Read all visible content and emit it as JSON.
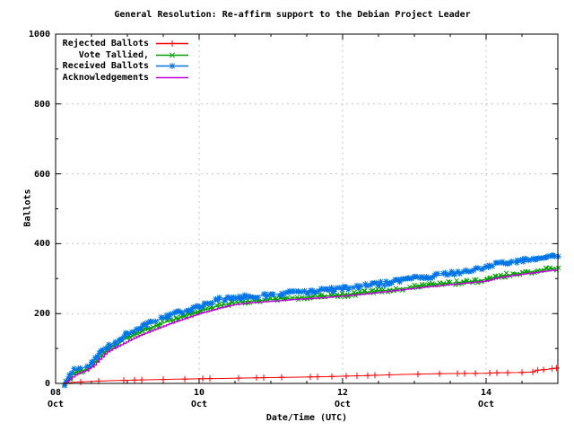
{
  "chart_data": {
    "type": "line",
    "title": "General Resolution: Re-affirm support to the Debian Project Leader",
    "xlabel": "Date/Time (UTC)",
    "ylabel": "Ballots",
    "ylim": [
      0,
      1000
    ],
    "xlim_days": [
      0,
      7
    ],
    "grid": true,
    "legend_position": "top-left",
    "grid_color": "#c5c5c5",
    "frame_color": "#000000",
    "yticks": [
      0,
      200,
      400,
      600,
      800,
      1000
    ],
    "y_minor_step": 100,
    "x_minor_step_days": 0.5,
    "x_major_step_days": 2,
    "xticks": [
      {
        "pos": 0,
        "line1": "08",
        "line2": "Oct"
      },
      {
        "pos": 2,
        "line1": "10",
        "line2": "Oct"
      },
      {
        "pos": 4,
        "line1": "12",
        "line2": "Oct"
      },
      {
        "pos": 6,
        "line1": "14",
        "line2": "Oct"
      }
    ],
    "series": [
      {
        "name": "Rejected Ballots",
        "color": "#ff0000",
        "marker": "plus",
        "band": false,
        "steps": false,
        "points": [
          [
            0.12,
            0
          ],
          [
            0.25,
            3
          ],
          [
            0.5,
            6
          ],
          [
            0.8,
            8
          ],
          [
            1.2,
            10
          ],
          [
            1.7,
            12
          ],
          [
            2.2,
            14
          ],
          [
            2.8,
            16
          ],
          [
            3.4,
            18
          ],
          [
            3.9,
            20
          ],
          [
            4.4,
            23
          ],
          [
            4.9,
            26
          ],
          [
            5.4,
            28
          ],
          [
            5.95,
            29
          ],
          [
            6.1,
            30
          ],
          [
            6.45,
            31
          ],
          [
            6.65,
            33
          ],
          [
            6.72,
            38
          ],
          [
            6.85,
            40
          ],
          [
            6.95,
            43
          ],
          [
            7.0,
            44
          ]
        ],
        "marker_days": [
          0.15,
          0.35,
          0.6,
          0.95,
          1.1,
          1.2,
          1.5,
          1.8,
          2.05,
          2.15,
          2.55,
          2.8,
          2.9,
          3.15,
          3.55,
          3.65,
          3.85,
          4.05,
          4.2,
          4.35,
          4.45,
          4.65,
          5.05,
          5.35,
          5.6,
          5.7,
          5.85,
          6.05,
          6.15,
          6.3,
          6.5,
          6.65,
          6.72,
          6.8,
          6.92,
          6.98
        ]
      },
      {
        "name": "Vote Tallied,",
        "color": "#00a000",
        "marker": "cross",
        "band": true,
        "steps": false,
        "points": [
          [
            0.12,
            0
          ],
          [
            0.18,
            12
          ],
          [
            0.25,
            26
          ],
          [
            0.33,
            35
          ],
          [
            0.42,
            40
          ],
          [
            0.5,
            50
          ],
          [
            0.57,
            64
          ],
          [
            0.63,
            80
          ],
          [
            0.7,
            93
          ],
          [
            0.78,
            104
          ],
          [
            0.88,
            115
          ],
          [
            0.98,
            128
          ],
          [
            1.1,
            140
          ],
          [
            1.25,
            153
          ],
          [
            1.42,
            167
          ],
          [
            1.6,
            180
          ],
          [
            1.78,
            192
          ],
          [
            1.95,
            203
          ],
          [
            2.1,
            212
          ],
          [
            2.28,
            222
          ],
          [
            2.45,
            230
          ],
          [
            2.65,
            235
          ],
          [
            2.9,
            238
          ],
          [
            3.2,
            243
          ],
          [
            3.55,
            248
          ],
          [
            3.9,
            252
          ],
          [
            4.1,
            255
          ],
          [
            4.4,
            262
          ],
          [
            4.7,
            269
          ],
          [
            5.0,
            276
          ],
          [
            5.3,
            283
          ],
          [
            5.6,
            289
          ],
          [
            5.9,
            294
          ],
          [
            6.05,
            300
          ],
          [
            6.3,
            310
          ],
          [
            6.6,
            319
          ],
          [
            7.0,
            331
          ]
        ]
      },
      {
        "name": "Received Ballots",
        "color": "#0073e6",
        "marker": "star",
        "band": true,
        "steps": false,
        "points": [
          [
            0.12,
            0
          ],
          [
            0.15,
            8
          ],
          [
            0.18,
            18
          ],
          [
            0.22,
            30
          ],
          [
            0.27,
            38
          ],
          [
            0.33,
            43
          ],
          [
            0.4,
            46
          ],
          [
            0.47,
            52
          ],
          [
            0.52,
            62
          ],
          [
            0.57,
            76
          ],
          [
            0.62,
            90
          ],
          [
            0.67,
            100
          ],
          [
            0.73,
            107
          ],
          [
            0.8,
            116
          ],
          [
            0.88,
            126
          ],
          [
            0.97,
            139
          ],
          [
            1.07,
            150
          ],
          [
            1.18,
            160
          ],
          [
            1.32,
            172
          ],
          [
            1.47,
            185
          ],
          [
            1.62,
            196
          ],
          [
            1.78,
            206
          ],
          [
            1.93,
            215
          ],
          [
            2.05,
            224
          ],
          [
            2.18,
            233
          ],
          [
            2.32,
            242
          ],
          [
            2.45,
            246
          ],
          [
            2.65,
            249
          ],
          [
            2.9,
            252
          ],
          [
            3.15,
            257
          ],
          [
            3.45,
            262
          ],
          [
            3.75,
            267
          ],
          [
            4.0,
            271
          ],
          [
            4.25,
            277
          ],
          [
            4.5,
            284
          ],
          [
            4.75,
            292
          ],
          [
            5.0,
            300
          ],
          [
            5.25,
            307
          ],
          [
            5.5,
            314
          ],
          [
            5.75,
            322
          ],
          [
            5.95,
            328
          ],
          [
            6.05,
            338
          ],
          [
            6.25,
            345
          ],
          [
            6.5,
            352
          ],
          [
            6.75,
            360
          ],
          [
            7.0,
            369
          ]
        ]
      },
      {
        "name": "Acknowledgements",
        "color": "#bf00d8",
        "marker": "none",
        "band": false,
        "steps": true,
        "points": [
          [
            0.12,
            0
          ],
          [
            0.2,
            14
          ],
          [
            0.3,
            28
          ],
          [
            0.42,
            37
          ],
          [
            0.52,
            50
          ],
          [
            0.6,
            68
          ],
          [
            0.7,
            88
          ],
          [
            0.8,
            100
          ],
          [
            0.92,
            112
          ],
          [
            1.05,
            126
          ],
          [
            1.2,
            140
          ],
          [
            1.4,
            156
          ],
          [
            1.6,
            172
          ],
          [
            1.8,
            186
          ],
          [
            2.0,
            200
          ],
          [
            2.15,
            208
          ],
          [
            2.32,
            218
          ],
          [
            2.5,
            226
          ],
          [
            2.7,
            231
          ],
          [
            3.0,
            235
          ],
          [
            3.3,
            240
          ],
          [
            3.7,
            245
          ],
          [
            4.0,
            250
          ],
          [
            4.3,
            256
          ],
          [
            4.6,
            263
          ],
          [
            4.9,
            270
          ],
          [
            5.2,
            277
          ],
          [
            5.5,
            283
          ],
          [
            5.8,
            289
          ],
          [
            6.0,
            293
          ],
          [
            6.15,
            302
          ],
          [
            6.4,
            310
          ],
          [
            6.7,
            318
          ],
          [
            7.0,
            326
          ]
        ]
      }
    ]
  }
}
